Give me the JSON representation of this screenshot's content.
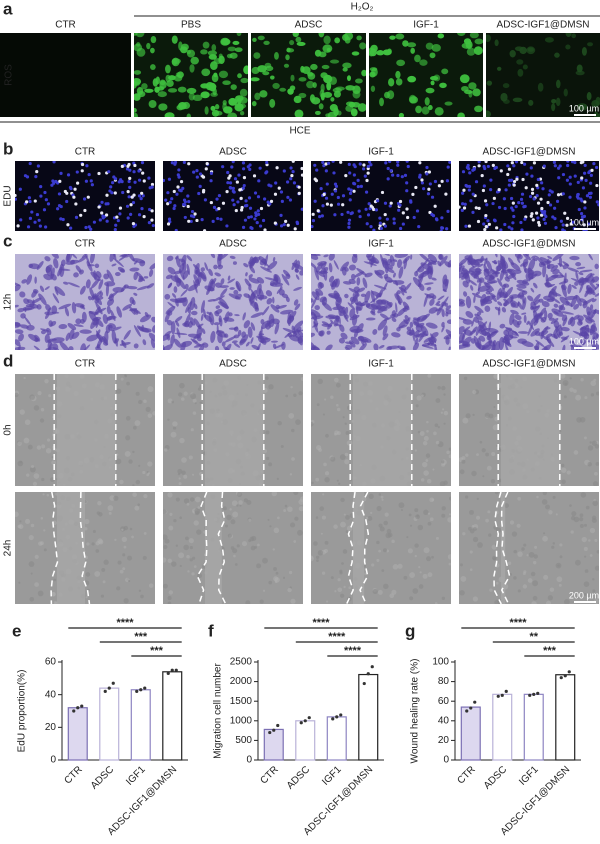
{
  "panel_a": {
    "letter": "a",
    "group_label": "H₂O₂",
    "row_label": "ROS",
    "columns": [
      "CTR",
      "PBS",
      "ADSC",
      "IGF-1",
      "ADSC-IGF1@DMSN"
    ],
    "scale_bar": "100 µm",
    "cell_line": "HCE"
  },
  "panel_b": {
    "letter": "b",
    "row_label": "EDU",
    "columns": [
      "CTR",
      "ADSC",
      "IGF-1",
      "ADSC-IGF1@DMSN"
    ],
    "scale_bar": "100 µm"
  },
  "panel_c": {
    "letter": "c",
    "row_label": "12h",
    "columns": [
      "CTR",
      "ADSC",
      "IGF-1",
      "ADSC-IGF1@DMSN"
    ],
    "scale_bar": "100 µm"
  },
  "panel_d": {
    "letter": "d",
    "row_labels": [
      "0h",
      "24h"
    ],
    "columns": [
      "CTR",
      "ADSC",
      "IGF-1",
      "ADSC-IGF1@DMSN"
    ],
    "scale_bar": "200 µm"
  },
  "chart_data": [
    {
      "type": "bar",
      "letter": "e",
      "ylabel": "EdU proportion(%)",
      "categories": [
        "CTR",
        "ADSC",
        "IGF1",
        "ADSC-IGF1@DMSN"
      ],
      "values": [
        32,
        44,
        43,
        54
      ],
      "points": [
        [
          30,
          32,
          33
        ],
        [
          42,
          44,
          47
        ],
        [
          42,
          43,
          44
        ],
        [
          53,
          55,
          55
        ]
      ],
      "colors": [
        "#7b6fb3",
        "#b9b2d8",
        "#8d84c2",
        "#222222"
      ],
      "fills": [
        "#ddd8ef",
        "#ffffff",
        "#ffffff",
        "#ffffff"
      ],
      "ylim": [
        0,
        60
      ],
      "yticks": [
        0,
        20,
        40,
        60
      ],
      "comparisons": [
        {
          "label": "****",
          "groups": [
            "CTR",
            "ADSC-IGF1@DMSN"
          ]
        },
        {
          "label": "***",
          "groups": [
            "ADSC",
            "ADSC-IGF1@DMSN"
          ]
        },
        {
          "label": "***",
          "groups": [
            "IGF1",
            "ADSC-IGF1@DMSN"
          ]
        }
      ]
    },
    {
      "type": "bar",
      "letter": "f",
      "ylabel": "Migration cell number",
      "categories": [
        "CTR",
        "ADSC",
        "IGF1",
        "ADSC-IGF1@DMSN"
      ],
      "values": [
        780,
        1000,
        1100,
        2180
      ],
      "points": [
        [
          700,
          760,
          880
        ],
        [
          950,
          1000,
          1080
        ],
        [
          1050,
          1100,
          1150
        ],
        [
          1950,
          2200,
          2380
        ]
      ],
      "colors": [
        "#7b6fb3",
        "#b9b2d8",
        "#8d84c2",
        "#222222"
      ],
      "fills": [
        "#ddd8ef",
        "#ffffff",
        "#ffffff",
        "#ffffff"
      ],
      "ylim": [
        0,
        2500
      ],
      "yticks": [
        0,
        500,
        1000,
        1500,
        2000,
        2500
      ],
      "comparisons": [
        {
          "label": "****",
          "groups": [
            "CTR",
            "ADSC-IGF1@DMSN"
          ]
        },
        {
          "label": "****",
          "groups": [
            "ADSC",
            "ADSC-IGF1@DMSN"
          ]
        },
        {
          "label": "****",
          "groups": [
            "IGF1",
            "ADSC-IGF1@DMSN"
          ]
        }
      ]
    },
    {
      "type": "bar",
      "letter": "g",
      "ylabel": "Wound healing rate (%)",
      "categories": [
        "CTR",
        "ADSC",
        "IGF1",
        "ADSC-IGF1@DMSN"
      ],
      "values": [
        54,
        67,
        67,
        87
      ],
      "points": [
        [
          50,
          53,
          59
        ],
        [
          65,
          66,
          70
        ],
        [
          66,
          67,
          68
        ],
        [
          84,
          86,
          90
        ]
      ],
      "colors": [
        "#7b6fb3",
        "#b9b2d8",
        "#8d84c2",
        "#222222"
      ],
      "fills": [
        "#ddd8ef",
        "#ffffff",
        "#ffffff",
        "#ffffff"
      ],
      "ylim": [
        0,
        100
      ],
      "yticks": [
        0,
        20,
        40,
        60,
        80,
        100
      ],
      "comparisons": [
        {
          "label": "****",
          "groups": [
            "CTR",
            "ADSC-IGF1@DMSN"
          ]
        },
        {
          "label": "**",
          "groups": [
            "ADSC",
            "ADSC-IGF1@DMSN"
          ]
        },
        {
          "label": "***",
          "groups": [
            "IGF1",
            "ADSC-IGF1@DMSN"
          ]
        }
      ]
    }
  ]
}
